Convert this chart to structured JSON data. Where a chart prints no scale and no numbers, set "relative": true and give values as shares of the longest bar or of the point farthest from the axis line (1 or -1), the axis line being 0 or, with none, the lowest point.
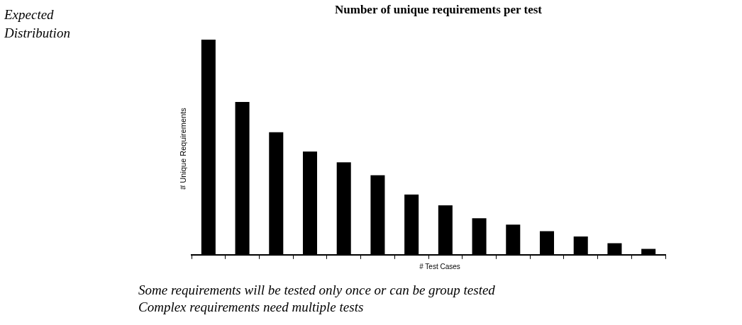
{
  "chart_data": {
    "type": "bar",
    "title": "Number of unique requirements per test",
    "xlabel": "# Test Cases",
    "ylabel": "# Unique Requirements",
    "relative": true,
    "color": "#000000",
    "categories": [
      null,
      null,
      null,
      null,
      null,
      null,
      null,
      null,
      null,
      null,
      null,
      null,
      null,
      null
    ],
    "values": [
      1,
      0.71,
      0.57,
      0.48,
      0.43,
      0.37,
      0.28,
      0.23,
      0.17,
      0.14,
      0.11,
      0.085,
      0.054,
      0.027
    ],
    "annotations": [
      "Expected Distribution",
      "Some requirements will be tested only once or can be group tested",
      "Complex requirements need multiple tests"
    ]
  }
}
